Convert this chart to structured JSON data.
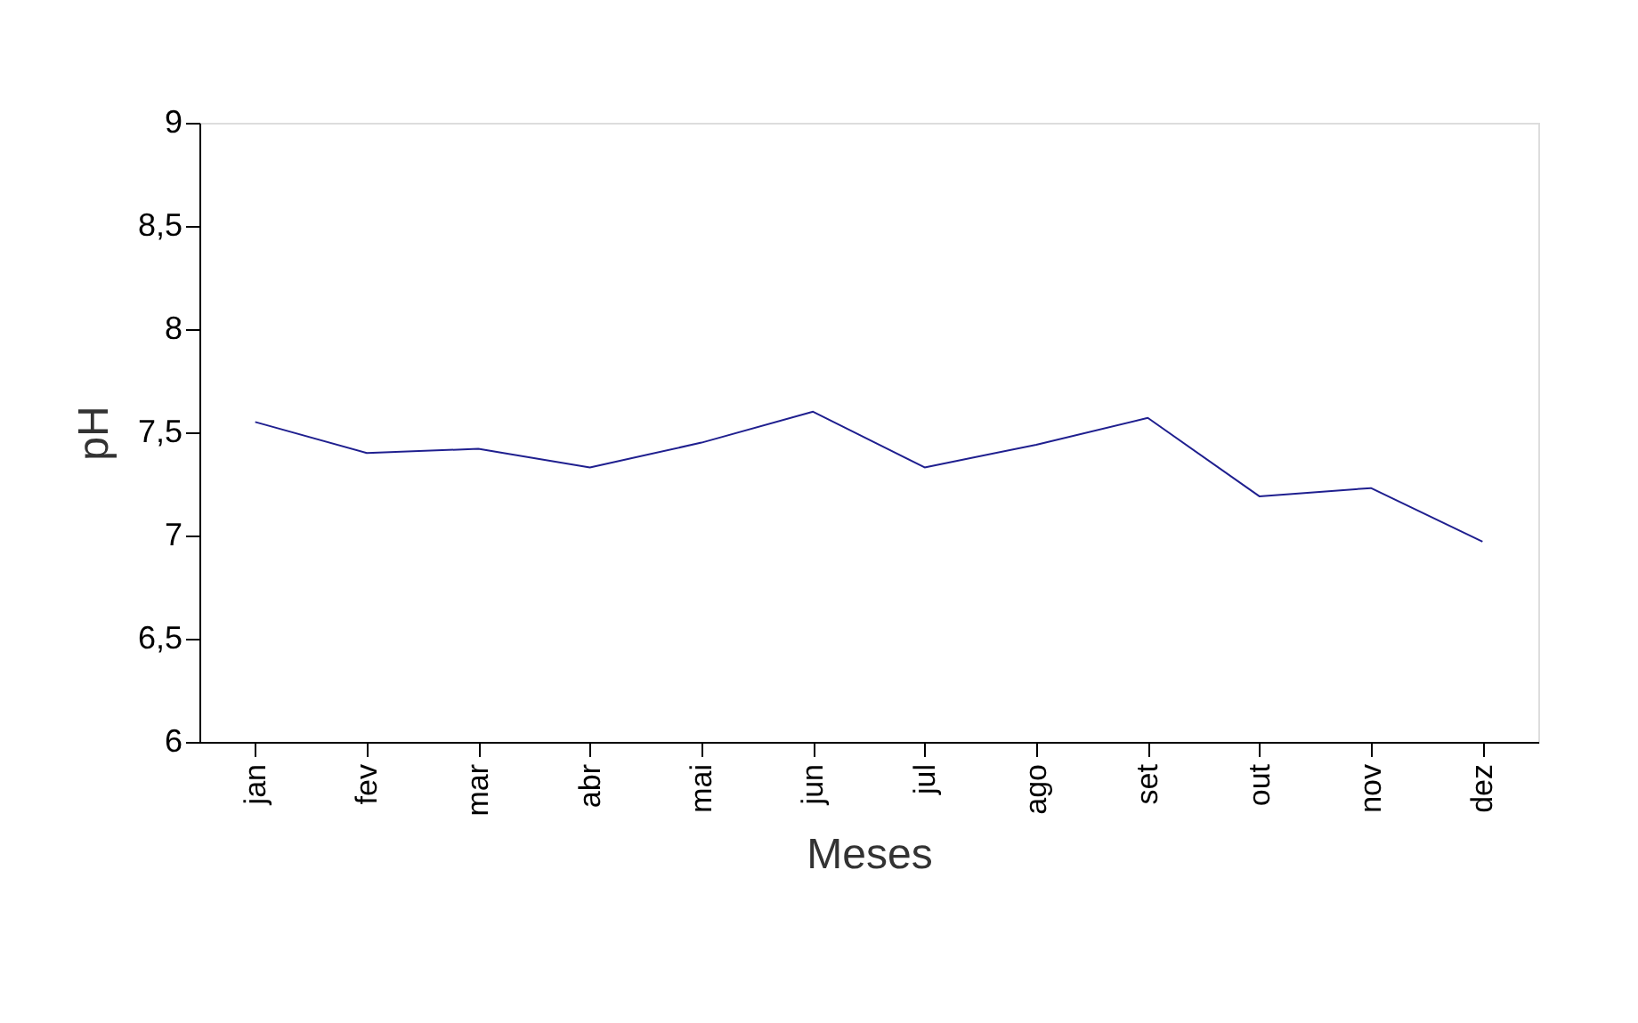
{
  "chart_data": {
    "type": "line",
    "xlabel": "Meses",
    "ylabel": "pH",
    "categories": [
      "jan",
      "fev",
      "mar",
      "abr",
      "mai",
      "jun",
      "jul",
      "ago",
      "set",
      "out",
      "nov",
      "dez"
    ],
    "series": [
      {
        "color": "#1f1f8f",
        "values": [
          7.55,
          7.4,
          7.42,
          7.33,
          7.45,
          7.6,
          7.33,
          7.44,
          7.57,
          7.19,
          7.23,
          6.97
        ]
      }
    ],
    "ylim": [
      6,
      9
    ],
    "yticks": [
      6,
      {
        "value": 6.5,
        "label": "6,5"
      },
      7,
      {
        "value": 7.5,
        "label": "7,5"
      },
      8,
      {
        "value": 8.5,
        "label": "8,5"
      },
      9
    ],
    "grid": false,
    "legend": false,
    "marker": "none",
    "line_style": "solid"
  }
}
